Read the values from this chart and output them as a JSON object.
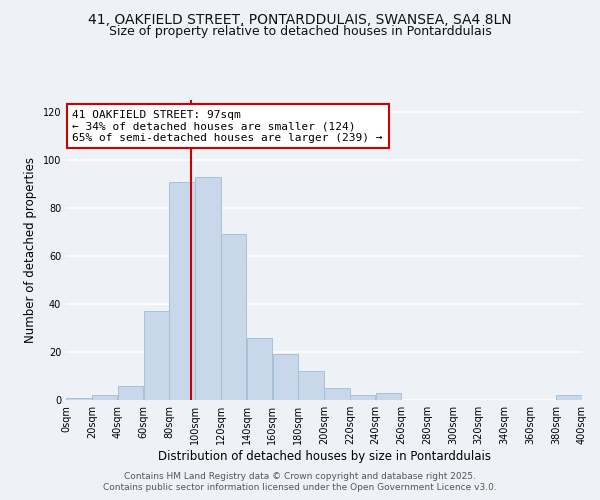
{
  "title1": "41, OAKFIELD STREET, PONTARDDULAIS, SWANSEA, SA4 8LN",
  "title2": "Size of property relative to detached houses in Pontarddulais",
  "xlabel": "Distribution of detached houses by size in Pontarddulais",
  "ylabel": "Number of detached properties",
  "bar_edges": [
    0,
    20,
    40,
    60,
    80,
    100,
    120,
    140,
    160,
    180,
    200,
    220,
    240,
    260,
    280,
    300,
    320,
    340,
    360,
    380,
    400
  ],
  "bar_heights": [
    1,
    2,
    6,
    37,
    91,
    93,
    69,
    26,
    19,
    12,
    5,
    2,
    3,
    0,
    0,
    0,
    0,
    0,
    0,
    2
  ],
  "bar_color": "#c8d8ea",
  "bar_edgecolor": "#a8c0d6",
  "vline_x": 97,
  "vline_color": "#cc0000",
  "annotation_title": "41 OAKFIELD STREET: 97sqm",
  "annotation_line2": "← 34% of detached houses are smaller (124)",
  "annotation_line3": "65% of semi-detached houses are larger (239) →",
  "annotation_box_edgecolor": "#cc0000",
  "annotation_box_facecolor": "#ffffff",
  "ylim": [
    0,
    125
  ],
  "xlim": [
    0,
    400
  ],
  "tick_labels": [
    "0sqm",
    "20sqm",
    "40sqm",
    "60sqm",
    "80sqm",
    "100sqm",
    "120sqm",
    "140sqm",
    "160sqm",
    "180sqm",
    "200sqm",
    "220sqm",
    "240sqm",
    "260sqm",
    "280sqm",
    "300sqm",
    "320sqm",
    "340sqm",
    "360sqm",
    "380sqm",
    "400sqm"
  ],
  "yticks": [
    0,
    20,
    40,
    60,
    80,
    100,
    120
  ],
  "footer1": "Contains HM Land Registry data © Crown copyright and database right 2025.",
  "footer2": "Contains public sector information licensed under the Open Government Licence v3.0.",
  "background_color": "#eef2f7",
  "grid_color": "#ffffff",
  "title_fontsize": 10,
  "subtitle_fontsize": 9,
  "axis_label_fontsize": 8.5,
  "tick_fontsize": 7,
  "annotation_fontsize": 8,
  "footer_fontsize": 6.5
}
